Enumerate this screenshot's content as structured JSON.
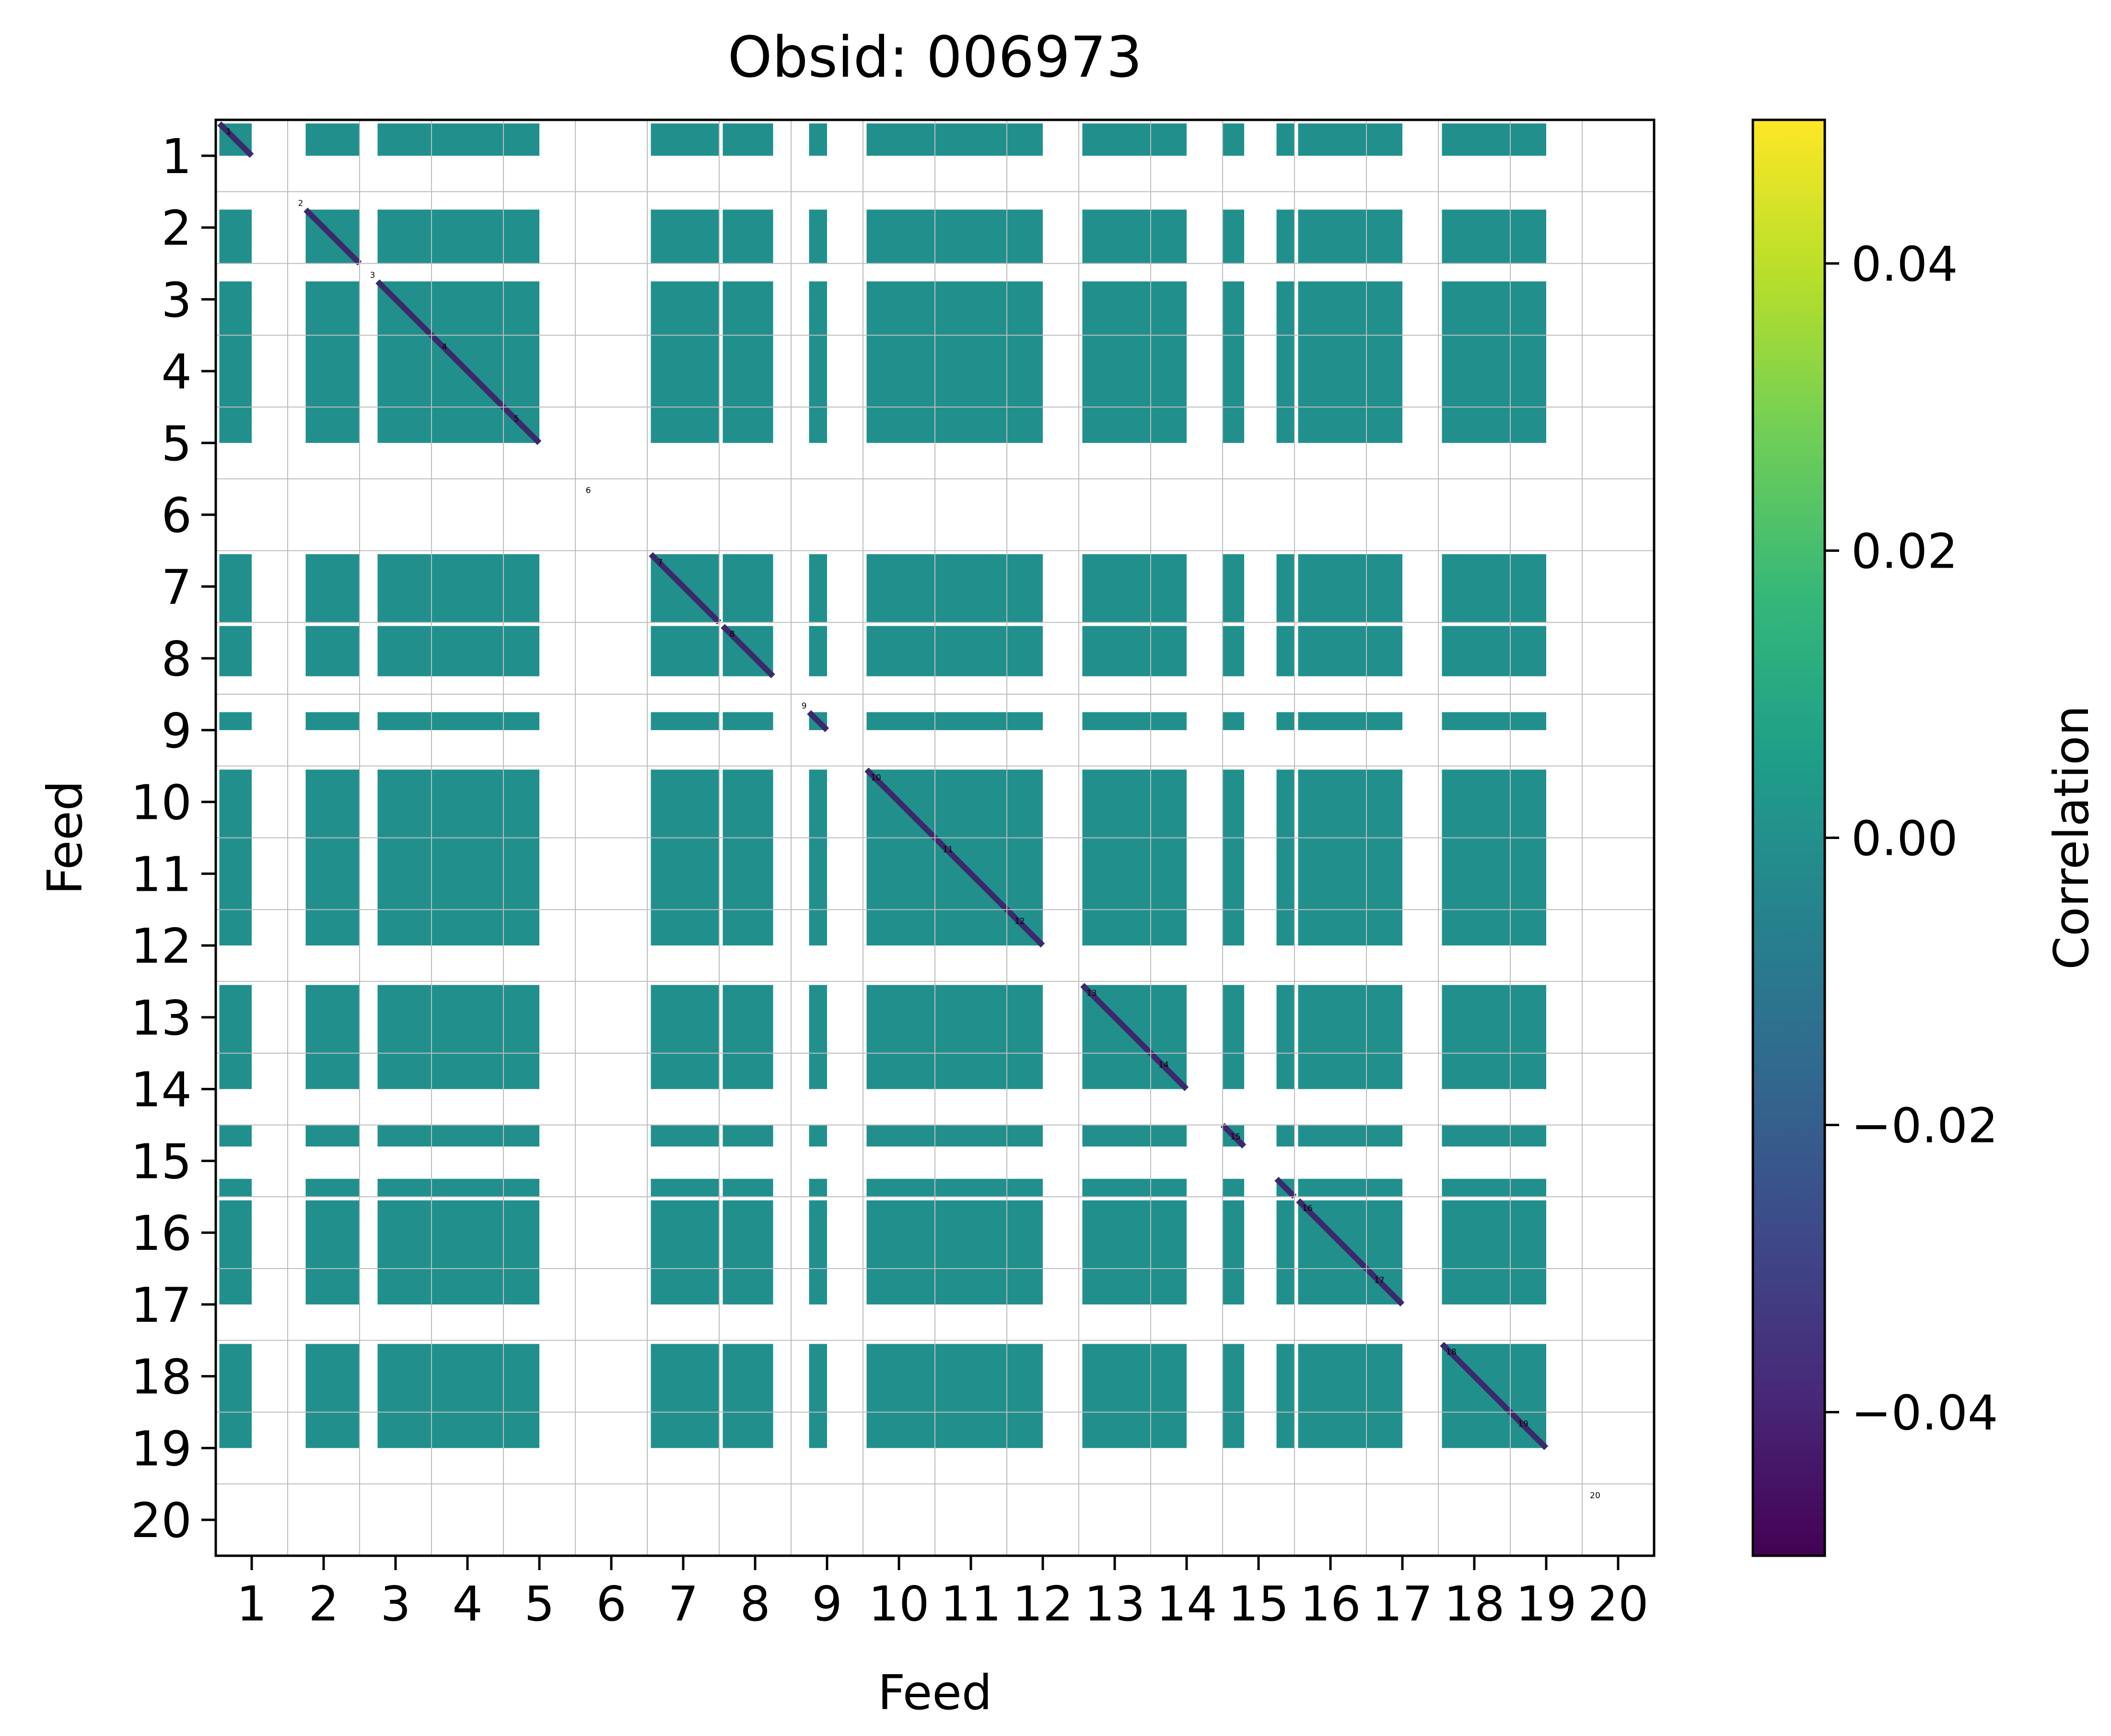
{
  "chart_data": {
    "type": "heatmap",
    "title": "Obsid: 006973",
    "xlabel": "Feed",
    "ylabel": "Feed",
    "x_ticks": [
      "1",
      "2",
      "3",
      "4",
      "5",
      "6",
      "7",
      "8",
      "9",
      "10",
      "11",
      "12",
      "13",
      "14",
      "15",
      "16",
      "17",
      "18",
      "19",
      "20"
    ],
    "y_ticks": [
      "1",
      "2",
      "3",
      "4",
      "5",
      "6",
      "7",
      "8",
      "9",
      "10",
      "11",
      "12",
      "13",
      "14",
      "15",
      "16",
      "17",
      "18",
      "19",
      "20"
    ],
    "diagonal_labels": [
      "1",
      "2",
      "3",
      "4",
      "5",
      "6",
      "7",
      "8",
      "9",
      "10",
      "11",
      "12",
      "13",
      "14",
      "15",
      "16",
      "17",
      "18",
      "19",
      "20"
    ],
    "grid": true,
    "colorbar": {
      "label": "Correlation",
      "range": [
        -0.05,
        0.05
      ],
      "ticks": [
        {
          "value": 0.04,
          "label": "0.04"
        },
        {
          "value": 0.02,
          "label": "0.02"
        },
        {
          "value": 0.0,
          "label": "0.00"
        },
        {
          "value": -0.02,
          "label": "−0.02"
        },
        {
          "value": -0.04,
          "label": "−0.04"
        }
      ],
      "colors": [
        "#440154",
        "#482878",
        "#3e4989",
        "#31688e",
        "#26828e",
        "#1f9e89",
        "#35b779",
        "#6ece58",
        "#b5de2b",
        "#fde725"
      ]
    },
    "block_color": "#21908d",
    "diagonal_color": "#3b2a6b",
    "off_diagonal_value": 0.0,
    "active_row_ranges": [
      {
        "feed": 1,
        "ranges": [
          [
            0.05,
            0.5
          ]
        ]
      },
      {
        "feed": 2,
        "ranges": [
          [
            0.25,
            1.0
          ]
        ]
      },
      {
        "feed": 3,
        "ranges": [
          [
            0.25,
            1.0
          ]
        ]
      },
      {
        "feed": 4,
        "ranges": [
          [
            0.0,
            1.0
          ]
        ]
      },
      {
        "feed": 5,
        "ranges": [
          [
            0.0,
            0.5
          ]
        ]
      },
      {
        "feed": 6,
        "ranges": []
      },
      {
        "feed": 7,
        "ranges": [
          [
            0.05,
            1.0
          ]
        ]
      },
      {
        "feed": 8,
        "ranges": [
          [
            0.05,
            0.75
          ]
        ]
      },
      {
        "feed": 9,
        "ranges": [
          [
            0.25,
            0.5
          ]
        ]
      },
      {
        "feed": 10,
        "ranges": [
          [
            0.05,
            1.0
          ]
        ]
      },
      {
        "feed": 11,
        "ranges": [
          [
            0.0,
            1.0
          ]
        ]
      },
      {
        "feed": 12,
        "ranges": [
          [
            0.0,
            0.5
          ]
        ]
      },
      {
        "feed": 13,
        "ranges": [
          [
            0.05,
            1.0
          ]
        ]
      },
      {
        "feed": 14,
        "ranges": [
          [
            0.0,
            0.5
          ]
        ]
      },
      {
        "feed": 15,
        "ranges": [
          [
            0.0,
            0.3
          ]
        ]
      },
      {
        "feed": 16,
        "ranges": [
          [
            -0.25,
            0.0
          ],
          [
            0.05,
            1.0
          ]
        ]
      },
      {
        "feed": 17,
        "ranges": [
          [
            0.0,
            0.5
          ]
        ]
      },
      {
        "feed": 18,
        "ranges": [
          [
            0.05,
            1.0
          ]
        ]
      },
      {
        "feed": 19,
        "ranges": [
          [
            0.0,
            0.5
          ]
        ]
      },
      {
        "feed": 20,
        "ranges": []
      }
    ]
  }
}
